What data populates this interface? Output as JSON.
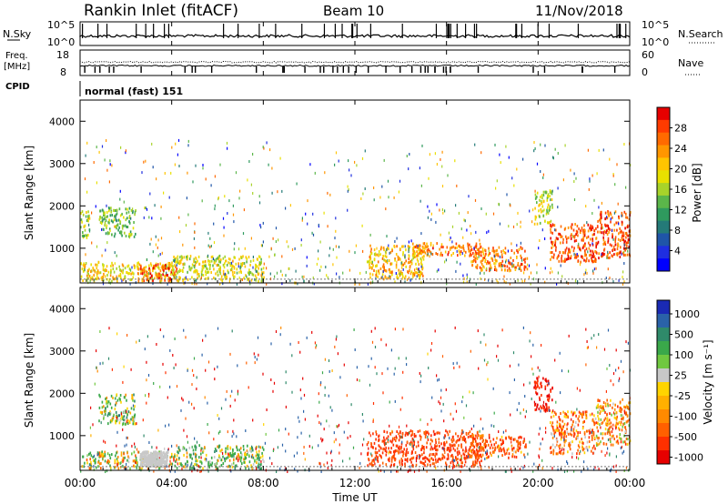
{
  "header": {
    "station": "Rankin Inlet (fitACF)",
    "beam": "Beam 10",
    "date": "11/Nov/2018"
  },
  "top_panels": {
    "nsky": {
      "label": "N.Sky",
      "ticks": [
        "10^5",
        "10^0"
      ]
    },
    "nsearch": {
      "label": "N.Search",
      "ticks": [
        "10^5",
        "10^0"
      ]
    },
    "freq": {
      "label_line1": "Freq.",
      "label_line2": "[MHz]",
      "ticks": [
        "18",
        "8"
      ]
    },
    "nave": {
      "label": "Nave",
      "ticks": [
        "60",
        "0"
      ]
    },
    "cpid": {
      "label": "CPID",
      "value": "normal (fast) 151"
    }
  },
  "colorbars": {
    "power": {
      "label": "Power [dB]",
      "ticks": [
        "28",
        "24",
        "20",
        "16",
        "12",
        "8",
        "4"
      ],
      "colors": [
        "#e60000",
        "#ff3b00",
        "#ff6a00",
        "#ff9600",
        "#ffc400",
        "#e8e000",
        "#a8d32a",
        "#5bb64a",
        "#2f9a5e",
        "#247a78",
        "#1f55a8",
        "#1f2ee0",
        "#0000ff"
      ]
    },
    "velocity": {
      "label": "Velocity [m s⁻¹]",
      "ticks": [
        "1000",
        "500",
        "100",
        "25",
        "-25",
        "-100",
        "-500",
        "-1000"
      ],
      "colors": [
        "#1a2ab4",
        "#2a62a8",
        "#2f8a6a",
        "#3aa84a",
        "#70c840",
        "#c8c8c8",
        "#ffd400",
        "#ffb000",
        "#ff8a00",
        "#ff6000",
        "#ff3000",
        "#e60000"
      ]
    }
  },
  "chart_data": [
    {
      "type": "heatmap",
      "title": "Power",
      "ylabel": "Slant Range [km]",
      "xlabel": "Time UT",
      "ylim": [
        180,
        4500
      ],
      "yticks": [
        "1000",
        "2000",
        "3000",
        "4000"
      ],
      "xticks": [
        "00:00",
        "04:00",
        "08:00",
        "12:00",
        "16:00",
        "20:00",
        "00:00"
      ],
      "colorbar_label": "Power [dB]",
      "features": [
        {
          "t_start": 0.0,
          "t_end": 4.0,
          "range_low": 250,
          "range_high": 700,
          "typical_value": 20
        },
        {
          "t_start": 0.0,
          "t_end": 0.4,
          "range_low": 1250,
          "range_high": 1900,
          "typical_value": 16
        },
        {
          "t_start": 0.8,
          "t_end": 2.4,
          "range_low": 1300,
          "range_high": 2000,
          "typical_value": 14
        },
        {
          "t_start": 2.5,
          "t_end": 4.2,
          "range_low": 250,
          "range_high": 650,
          "typical_value": 28
        },
        {
          "t_start": 4.0,
          "t_end": 8.0,
          "range_low": 250,
          "range_high": 850,
          "typical_value": 18
        },
        {
          "t_start": 12.5,
          "t_end": 15.0,
          "range_low": 300,
          "range_high": 1100,
          "typical_value": 22
        },
        {
          "t_start": 14.5,
          "t_end": 17.5,
          "range_low": 850,
          "range_high": 1150,
          "typical_value": 26
        },
        {
          "t_start": 17.0,
          "t_end": 19.5,
          "range_low": 500,
          "range_high": 1050,
          "typical_value": 26
        },
        {
          "t_start": 19.8,
          "t_end": 20.6,
          "range_low": 1600,
          "range_high": 2400,
          "typical_value": 18
        },
        {
          "t_start": 20.5,
          "t_end": 22.5,
          "range_low": 700,
          "range_high": 1600,
          "typical_value": 28
        },
        {
          "t_start": 22.5,
          "t_end": 24.0,
          "range_low": 800,
          "range_high": 1900,
          "typical_value": 28
        }
      ]
    },
    {
      "type": "heatmap",
      "title": "Velocity",
      "ylabel": "Slant Range [km]",
      "xlabel": "Time UT",
      "ylim": [
        180,
        4500
      ],
      "yticks": [
        "1000",
        "2000",
        "3000",
        "4000"
      ],
      "xticks": [
        "00:00",
        "04:00",
        "08:00",
        "12:00",
        "16:00",
        "20:00",
        "00:00"
      ],
      "colorbar_label": "Velocity [m s⁻¹]",
      "features": [
        {
          "t_start": 0.0,
          "t_end": 3.5,
          "range_low": 250,
          "range_high": 650,
          "typical_value": 25
        },
        {
          "t_start": 3.3,
          "t_end": 4.2,
          "range_low": 300,
          "range_high": 650,
          "typical_value": 0
        },
        {
          "t_start": 0.8,
          "t_end": 2.4,
          "range_low": 1300,
          "range_high": 2000,
          "typical_value": 100
        },
        {
          "t_start": 4.2,
          "t_end": 8.0,
          "range_low": 250,
          "range_high": 800,
          "typical_value": 100
        },
        {
          "t_start": 12.5,
          "t_end": 17.5,
          "range_low": 300,
          "range_high": 1150,
          "typical_value": -300
        },
        {
          "t_start": 17.0,
          "t_end": 19.5,
          "range_low": 500,
          "range_high": 1050,
          "typical_value": -200
        },
        {
          "t_start": 19.8,
          "t_end": 20.6,
          "range_low": 1600,
          "range_high": 2400,
          "typical_value": -500
        },
        {
          "t_start": 20.5,
          "t_end": 22.5,
          "range_low": 600,
          "range_high": 1600,
          "typical_value": -150
        },
        {
          "t_start": 22.5,
          "t_end": 24.0,
          "range_low": 800,
          "range_high": 1900,
          "typical_value": -100
        }
      ]
    }
  ]
}
